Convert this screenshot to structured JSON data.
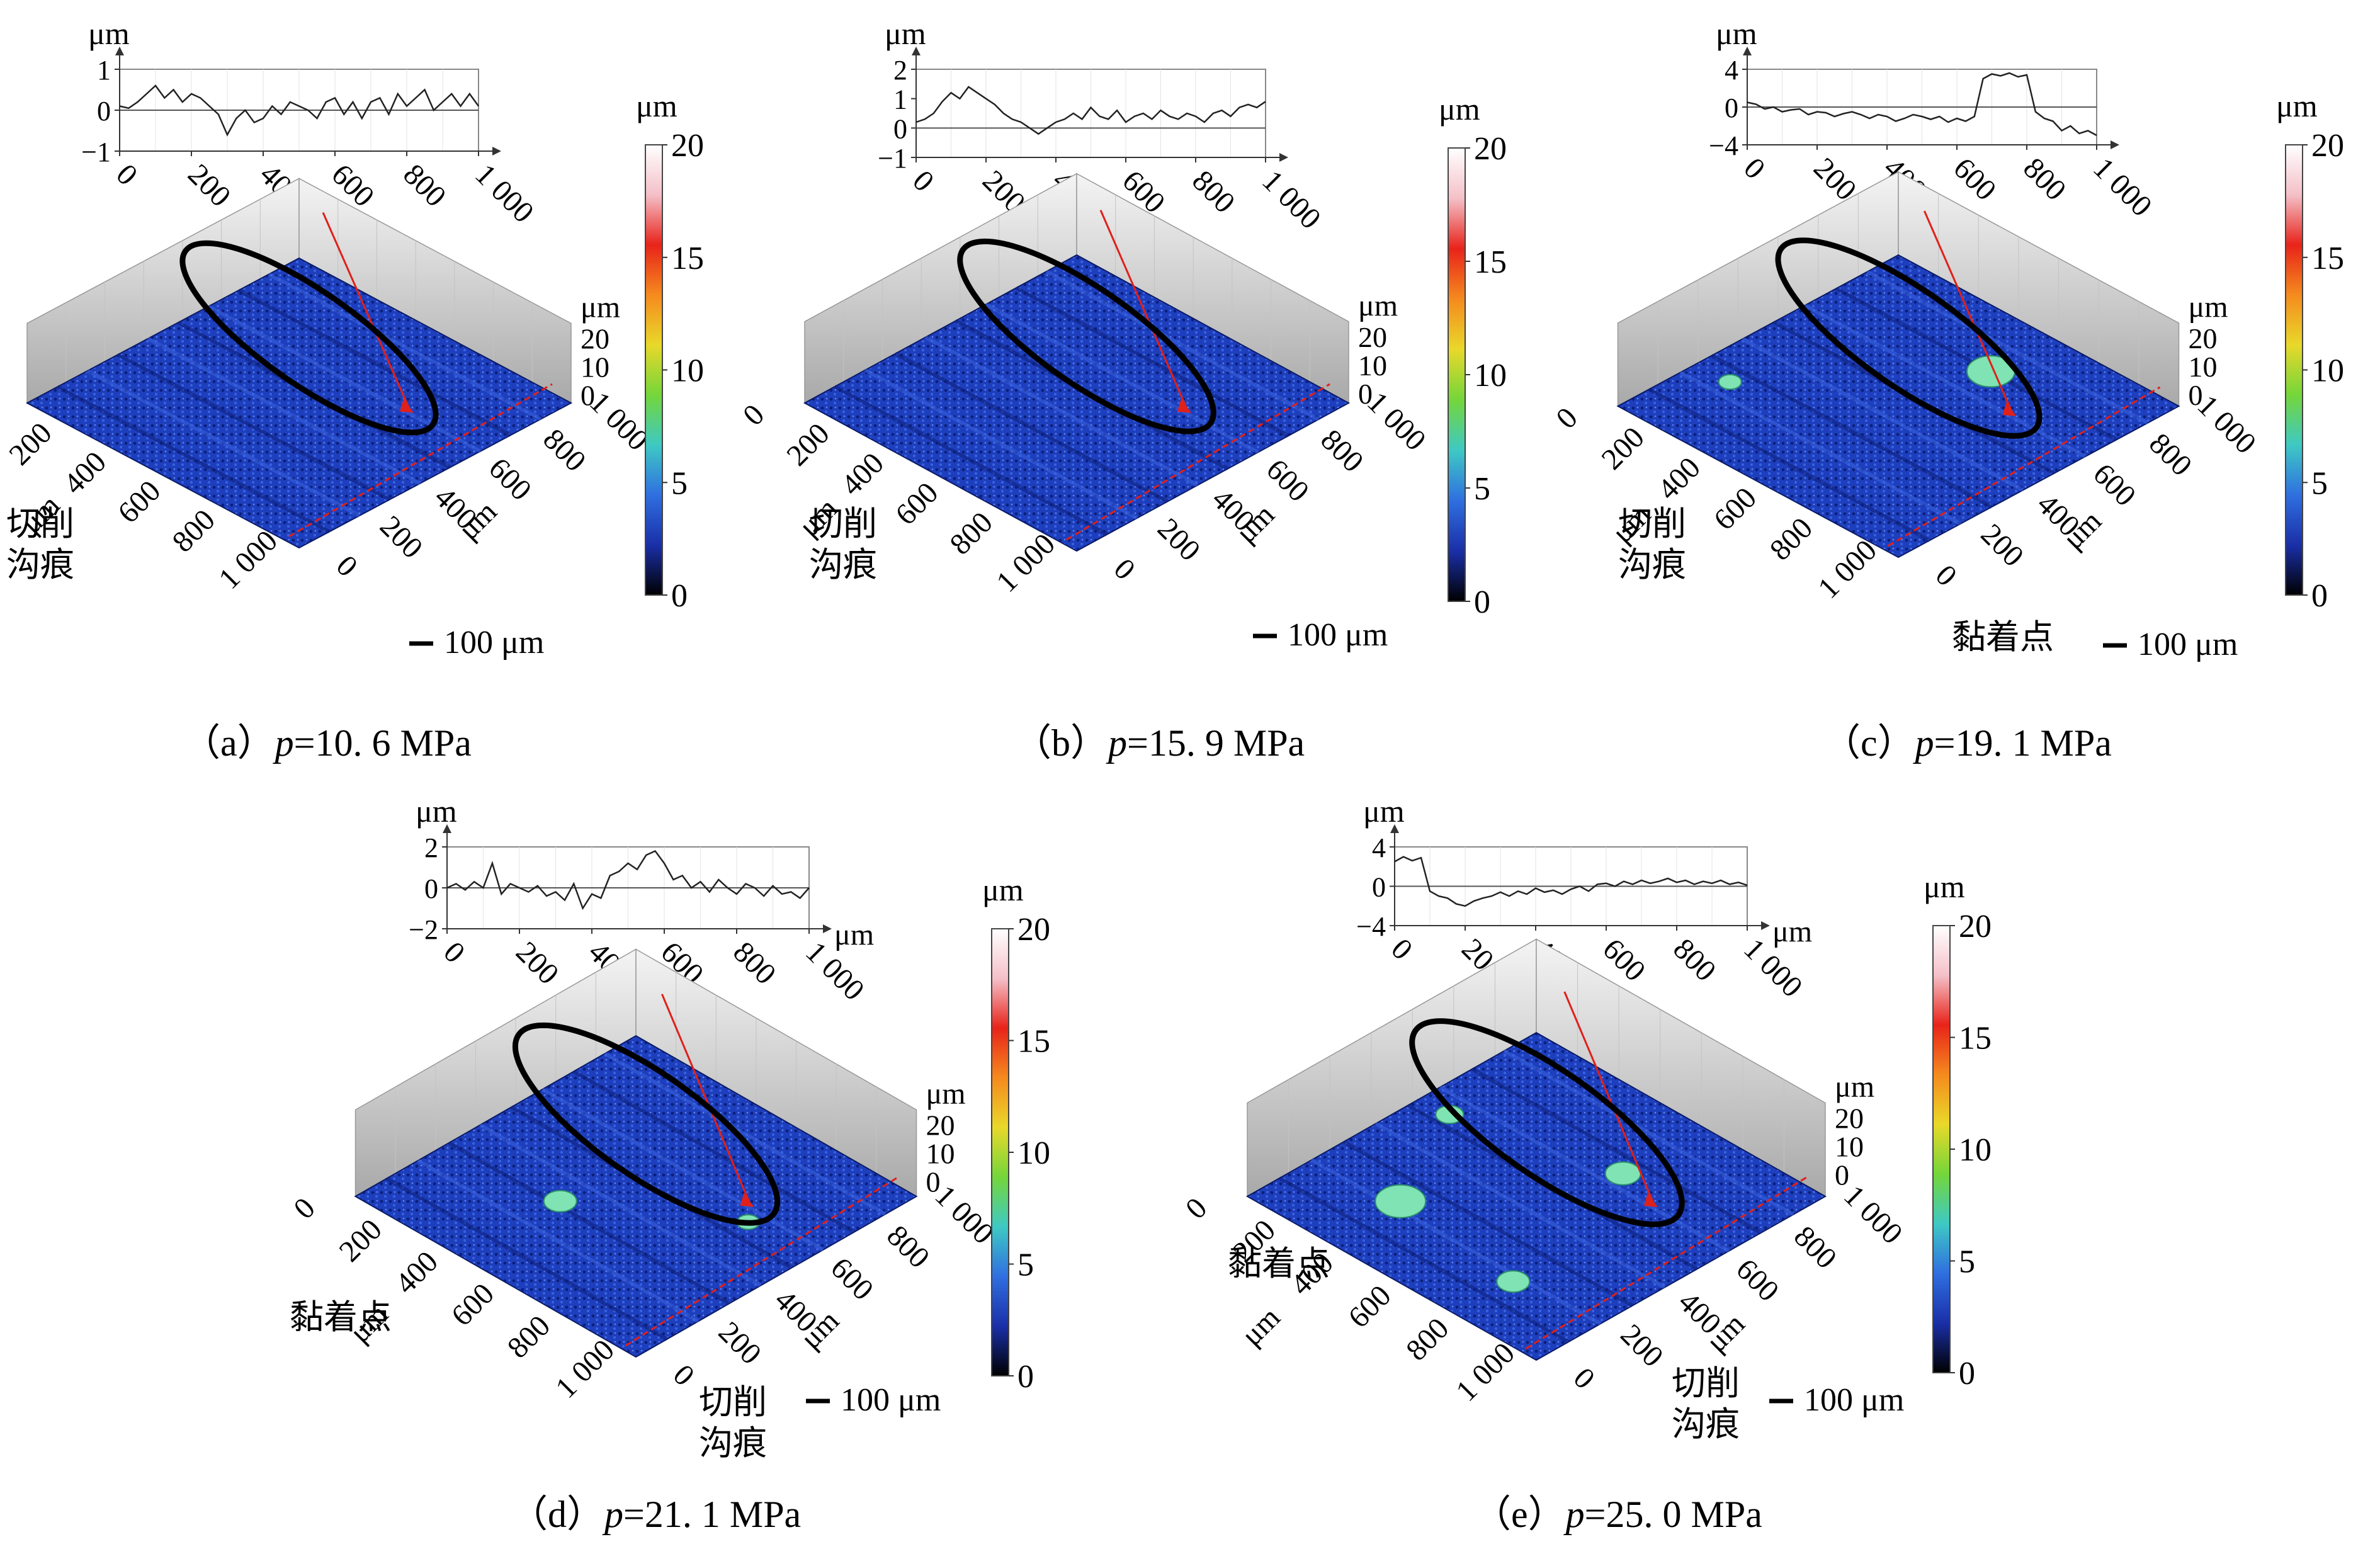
{
  "colors": {
    "surface_base": "#1e3fbd",
    "surface_dark": "#0c1f7a",
    "surface_light": "#3b63e0",
    "adhesion": "#7fe3b4",
    "profile_line": "#222222",
    "annotation_ellipse": "#000000",
    "section_line": "#e0201a",
    "wall": "#d6d6d6"
  },
  "labels": {
    "unit_um": "μm",
    "groove": [
      "切削",
      "沟痕"
    ],
    "adhesion": "黏着点",
    "scale_bar": "100 μm",
    "p_prefix": "p"
  },
  "colorbar": {
    "title": "μm",
    "ticks": [
      "20",
      "15",
      "10",
      "5",
      "0"
    ],
    "stops": [
      "#ffffff",
      "#f4c0c8",
      "#e8231a",
      "#f58a1e",
      "#e9d82a",
      "#74d63a",
      "#3ec9c4",
      "#2f6fe0",
      "#1a2fa8",
      "#000000"
    ]
  },
  "surface_axes": {
    "left_ticks": [
      "0",
      "200",
      "400",
      "600",
      "800",
      "1 000"
    ],
    "right_ticks": [
      "1 000",
      "800",
      "600",
      "400",
      "200",
      "0"
    ],
    "z_ticks": [
      "20",
      "10",
      "0"
    ]
  },
  "panels": [
    {
      "id": "a",
      "caption_letter": "（a）",
      "caption_value": "=10. 6 MPa",
      "annotations": [
        "groove"
      ],
      "chart_data": {
        "type": "line",
        "title": "",
        "xlabel": "",
        "ylabel": "μm",
        "xlim": [
          0,
          1000
        ],
        "ylim": [
          -1,
          1
        ],
        "xticks": [
          "0",
          "200",
          "400",
          "600",
          "800",
          "1 000"
        ],
        "yticks": [
          "1",
          "0",
          "-1"
        ],
        "x": [
          0,
          25,
          50,
          75,
          100,
          125,
          150,
          175,
          200,
          225,
          250,
          275,
          300,
          325,
          350,
          375,
          400,
          425,
          450,
          475,
          500,
          525,
          550,
          575,
          600,
          625,
          650,
          675,
          700,
          725,
          750,
          775,
          800,
          825,
          850,
          875,
          900,
          925,
          950,
          975,
          1000
        ],
        "y": [
          0.1,
          0.05,
          0.2,
          0.4,
          0.6,
          0.3,
          0.5,
          0.2,
          0.4,
          0.3,
          0.1,
          -0.1,
          -0.6,
          -0.2,
          0.0,
          -0.3,
          -0.2,
          0.1,
          -0.1,
          0.2,
          0.1,
          0.0,
          -0.2,
          0.2,
          0.3,
          -0.1,
          0.2,
          -0.2,
          0.2,
          0.3,
          -0.1,
          0.4,
          0.1,
          0.3,
          0.5,
          0.0,
          0.2,
          0.4,
          0.1,
          0.4,
          0.1
        ]
      }
    },
    {
      "id": "b",
      "caption_letter": "（b）",
      "caption_value": "=15. 9 MPa",
      "annotations": [
        "groove"
      ],
      "chart_data": {
        "type": "line",
        "title": "",
        "xlabel": "",
        "ylabel": "μm",
        "xlim": [
          0,
          1000
        ],
        "ylim": [
          -1,
          2
        ],
        "xticks": [
          "0",
          "200",
          "400",
          "600",
          "800",
          "1 000"
        ],
        "yticks": [
          "2",
          "1",
          "0",
          "-1"
        ],
        "x": [
          0,
          25,
          50,
          75,
          100,
          125,
          150,
          175,
          200,
          225,
          250,
          275,
          300,
          325,
          350,
          375,
          400,
          425,
          450,
          475,
          500,
          525,
          550,
          575,
          600,
          625,
          650,
          675,
          700,
          725,
          750,
          775,
          800,
          825,
          850,
          875,
          900,
          925,
          950,
          975,
          1000
        ],
        "y": [
          0.2,
          0.3,
          0.5,
          0.9,
          1.2,
          1.0,
          1.4,
          1.2,
          1.0,
          0.8,
          0.5,
          0.3,
          0.2,
          0.0,
          -0.2,
          0.0,
          0.2,
          0.3,
          0.5,
          0.3,
          0.7,
          0.4,
          0.3,
          0.6,
          0.2,
          0.4,
          0.5,
          0.3,
          0.6,
          0.4,
          0.3,
          0.5,
          0.4,
          0.2,
          0.5,
          0.6,
          0.4,
          0.7,
          0.8,
          0.7,
          0.9
        ]
      }
    },
    {
      "id": "c",
      "caption_letter": "（c）",
      "caption_value": "=19. 1  MPa",
      "annotations": [
        "groove",
        "adhesion"
      ],
      "chart_data": {
        "type": "line",
        "title": "",
        "xlabel": "",
        "ylabel": "μm",
        "xlim": [
          0,
          1000
        ],
        "ylim": [
          -4,
          4
        ],
        "xticks": [
          "0",
          "200",
          "400",
          "600",
          "800",
          "1 000"
        ],
        "yticks": [
          "4",
          "0",
          "-4"
        ],
        "x": [
          0,
          25,
          50,
          75,
          100,
          125,
          150,
          175,
          200,
          225,
          250,
          275,
          300,
          325,
          350,
          375,
          400,
          425,
          450,
          475,
          500,
          525,
          550,
          575,
          600,
          625,
          650,
          675,
          700,
          725,
          750,
          775,
          800,
          825,
          850,
          875,
          900,
          925,
          950,
          975,
          1000
        ],
        "y": [
          0.5,
          0.3,
          -0.2,
          0.0,
          -0.5,
          -0.3,
          -0.2,
          -0.8,
          -0.5,
          -0.6,
          -1.0,
          -0.7,
          -0.5,
          -0.8,
          -1.2,
          -0.8,
          -1.0,
          -1.5,
          -1.2,
          -0.8,
          -1.0,
          -1.3,
          -1.0,
          -1.6,
          -1.2,
          -1.5,
          -1.0,
          3.0,
          3.5,
          3.3,
          3.6,
          3.2,
          3.4,
          -0.5,
          -1.2,
          -1.5,
          -2.5,
          -2.0,
          -2.8,
          -2.5,
          -3.0
        ]
      }
    },
    {
      "id": "d",
      "caption_letter": "（d）",
      "caption_value": "=21. 1 MPa",
      "annotations": [
        "adhesion",
        "groove"
      ],
      "chart_data": {
        "type": "line",
        "title": "",
        "xlabel": "",
        "ylabel": "μm",
        "xlim": [
          0,
          1000
        ],
        "ylim": [
          -2,
          2
        ],
        "xticks": [
          "0",
          "200",
          "400",
          "600",
          "800",
          "1 000"
        ],
        "yticks": [
          "2",
          "0",
          "-2"
        ],
        "x": [
          0,
          25,
          50,
          75,
          100,
          125,
          150,
          175,
          200,
          225,
          250,
          275,
          300,
          325,
          350,
          375,
          400,
          425,
          450,
          475,
          500,
          525,
          550,
          575,
          600,
          625,
          650,
          675,
          700,
          725,
          750,
          775,
          800,
          825,
          850,
          875,
          900,
          925,
          950,
          975,
          1000
        ],
        "y": [
          0.0,
          0.2,
          -0.1,
          0.3,
          0.0,
          1.2,
          -0.3,
          0.2,
          0.0,
          -0.2,
          0.1,
          -0.4,
          -0.2,
          -0.6,
          0.2,
          -1.0,
          -0.3,
          -0.5,
          0.6,
          0.8,
          1.2,
          0.9,
          1.6,
          1.8,
          1.2,
          0.4,
          0.6,
          0.0,
          0.3,
          -0.2,
          0.4,
          0.0,
          -0.3,
          0.2,
          0.0,
          -0.4,
          0.1,
          -0.3,
          -0.2,
          -0.5,
          0.0
        ]
      }
    },
    {
      "id": "e",
      "caption_letter": "（e）",
      "caption_value": "=25. 0  MPa",
      "annotations": [
        "adhesion",
        "groove"
      ],
      "chart_data": {
        "type": "line",
        "title": "",
        "xlabel": "",
        "ylabel": "μm",
        "xlim": [
          0,
          1000
        ],
        "ylim": [
          -4,
          4
        ],
        "xticks": [
          "0",
          "200",
          "400",
          "600",
          "800",
          "1 000"
        ],
        "yticks": [
          "4",
          "0",
          "-4"
        ],
        "x": [
          0,
          25,
          50,
          75,
          100,
          125,
          150,
          175,
          200,
          225,
          250,
          275,
          300,
          325,
          350,
          375,
          400,
          425,
          450,
          475,
          500,
          525,
          550,
          575,
          600,
          625,
          650,
          675,
          700,
          725,
          750,
          775,
          800,
          825,
          850,
          875,
          900,
          925,
          950,
          975,
          1000
        ],
        "y": [
          2.5,
          3.0,
          2.6,
          2.9,
          -0.5,
          -1.0,
          -1.2,
          -1.8,
          -2.0,
          -1.5,
          -1.2,
          -1.0,
          -0.6,
          -1.0,
          -0.5,
          -0.8,
          -0.2,
          -0.6,
          -0.4,
          -0.8,
          -0.3,
          0.0,
          -0.5,
          0.2,
          0.3,
          0.0,
          0.5,
          0.2,
          0.6,
          0.3,
          0.5,
          0.8,
          0.4,
          0.6,
          0.2,
          0.5,
          0.3,
          0.6,
          0.2,
          0.4,
          0.1
        ]
      }
    }
  ]
}
